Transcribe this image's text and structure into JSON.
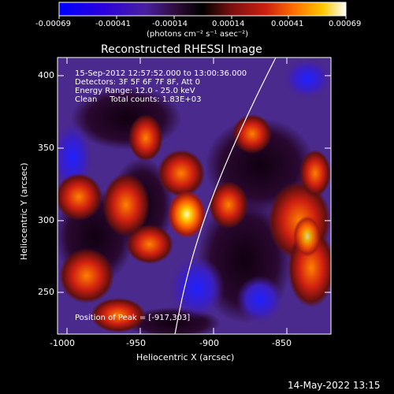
{
  "colorbar": {
    "ticks": [
      "-0.00069",
      "-0.00041",
      "-0.00014",
      "0.00014",
      "0.00041",
      "0.00069"
    ],
    "units": "(photons cm⁻² s⁻¹ asec⁻²)",
    "colors": [
      "#0000ff",
      "#3a00c8",
      "#5a1ea0",
      "#2a0a20",
      "#000000",
      "#801010",
      "#d02010",
      "#ff7800",
      "#ffd000",
      "#ffffff"
    ]
  },
  "plot": {
    "title": "Reconstructed RHESSI Image",
    "xlabel": "Heliocentric X (arcsec)",
    "ylabel": "Heliocentric Y (arcsec)",
    "xticks": [
      "-1000",
      "-950",
      "-900",
      "-850"
    ],
    "yticks": [
      "400",
      "350",
      "300",
      "250"
    ],
    "annotations": [
      "15-Sep-2012 12:57:52.000 to 13:00:36.000",
      "Detectors: 3F 5F 6F 7F 8F, Att 0",
      "Energy Range: 12.0 - 25.0 keV",
      "Clean     Total counts: 1.83E+03"
    ],
    "peak": "Position of Peak = [-917,303]"
  },
  "footer": {
    "timestamp": "14-May-2022 13:15"
  }
}
